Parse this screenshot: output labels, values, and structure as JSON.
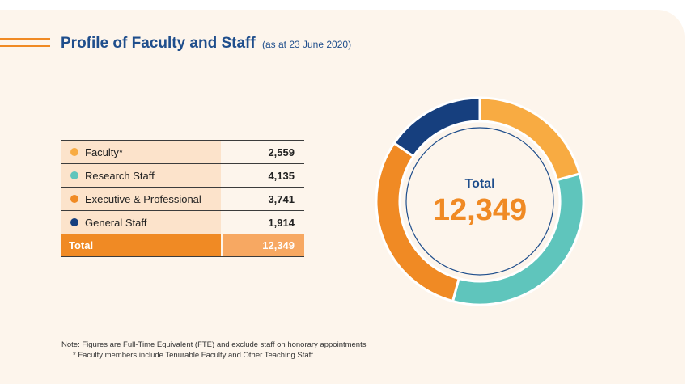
{
  "header": {
    "title": "Profile of Faculty and Staff",
    "subtitle": "(as at 23 June 2020)"
  },
  "table": {
    "rows": [
      {
        "label": "Faculty*",
        "value": "2,559",
        "color": "#f8ab42"
      },
      {
        "label": "Research Staff",
        "value": "4,135",
        "color": "#5fc5bc"
      },
      {
        "label": "Executive & Professional",
        "value": "3,741",
        "color": "#f08a24"
      },
      {
        "label": "General Staff",
        "value": "1,914",
        "color": "#163f7e"
      }
    ],
    "total": {
      "label": "Total",
      "value": "12,349"
    }
  },
  "chart_data": {
    "type": "pie",
    "title": "Total",
    "center_value": "12,349",
    "categories": [
      "Faculty*",
      "Research Staff",
      "Executive & Professional",
      "General Staff"
    ],
    "values": [
      2559,
      4135,
      3741,
      1914
    ],
    "colors": [
      "#f8ab42",
      "#5fc5bc",
      "#f08a24",
      "#163f7e"
    ]
  },
  "note": {
    "line1": "Note: Figures are Full-Time Equivalent (FTE) and exclude staff on honorary appointments",
    "line2": "*   Faculty members include Tenurable Faculty and Other Teaching Staff"
  }
}
